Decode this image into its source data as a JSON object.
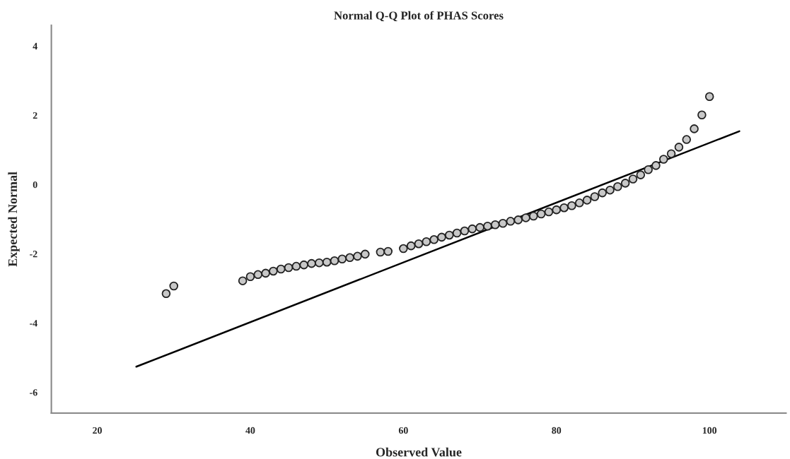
{
  "chart_data": {
    "type": "scatter",
    "title": "Normal Q-Q Plot of PHAS Scores",
    "xlabel": "Observed Value",
    "ylabel": "Expected Normal",
    "xlim": [
      14,
      110
    ],
    "ylim": [
      -6.6,
      4.6
    ],
    "xticks": [
      20,
      40,
      60,
      80,
      100
    ],
    "yticks": [
      -6,
      -4,
      -2,
      0,
      2,
      4
    ],
    "grid": false,
    "legend": false,
    "marker": "circle",
    "series": [
      {
        "color": "#c8c8c8",
        "x": [
          29,
          30,
          39,
          40,
          41,
          42,
          43,
          44,
          45,
          46,
          47,
          48,
          49,
          50,
          51,
          52,
          53,
          54,
          55,
          57,
          58,
          60,
          61,
          62,
          63,
          64,
          65,
          66,
          67,
          68,
          69,
          70,
          71,
          72,
          73,
          74,
          75,
          76,
          77,
          78,
          79,
          80,
          81,
          82,
          83,
          84,
          85,
          86,
          87,
          88,
          89,
          90,
          91,
          92,
          93,
          94,
          95,
          96,
          97,
          98,
          99,
          100
        ],
        "values": [
          -3.15,
          -2.93,
          -2.78,
          -2.66,
          -2.6,
          -2.56,
          -2.5,
          -2.44,
          -2.4,
          -2.36,
          -2.32,
          -2.28,
          -2.26,
          -2.24,
          -2.2,
          -2.15,
          -2.11,
          -2.07,
          -2.01,
          -1.95,
          -1.93,
          -1.85,
          -1.77,
          -1.71,
          -1.65,
          -1.59,
          -1.52,
          -1.46,
          -1.4,
          -1.34,
          -1.28,
          -1.24,
          -1.2,
          -1.16,
          -1.12,
          -1.06,
          -1.02,
          -0.96,
          -0.91,
          -0.85,
          -0.79,
          -0.73,
          -0.67,
          -0.61,
          -0.53,
          -0.45,
          -0.35,
          -0.24,
          -0.16,
          -0.06,
          0.04,
          0.16,
          0.28,
          0.43,
          0.55,
          0.73,
          0.89,
          1.08,
          1.3,
          1.61,
          2.01,
          2.54
        ]
      },
      {
        "type": "line",
        "color": "#000000",
        "line_style": "solid",
        "marker": "none",
        "x": [
          25.1,
          103.9
        ],
        "values": [
          -5.26,
          1.54
        ]
      }
    ]
  }
}
